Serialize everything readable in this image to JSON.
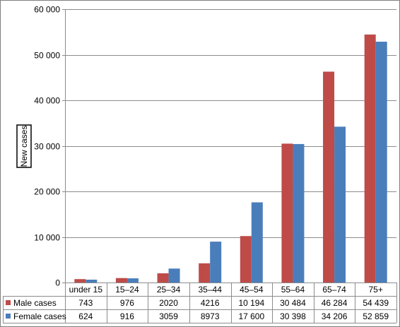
{
  "chart_data": {
    "type": "bar",
    "ylabel": "New cases",
    "ylim": [
      0,
      60000
    ],
    "yticks": [
      "0",
      "10 000",
      "20 000",
      "30 000",
      "40 000",
      "50 000",
      "60 000"
    ],
    "ytick_values": [
      0,
      10000,
      20000,
      30000,
      40000,
      50000,
      60000
    ],
    "grid": true,
    "legend": "data-table",
    "categories": [
      "under 15",
      "15–24",
      "25–34",
      "35–44",
      "45–54",
      "55–64",
      "65–74",
      "75+"
    ],
    "series": [
      {
        "name": "Male cases",
        "color": "#be4b48",
        "values": [
          743,
          976,
          2020,
          4216,
          10194,
          30484,
          46284,
          54439
        ],
        "labels": [
          "743",
          "976",
          "2020",
          "4216",
          "10 194",
          "30 484",
          "46 284",
          "54 439"
        ]
      },
      {
        "name": "Female cases",
        "color": "#4a7ebb",
        "values": [
          624,
          916,
          3059,
          8973,
          17600,
          30398,
          34206,
          52859
        ],
        "labels": [
          "624",
          "916",
          "3059",
          "8973",
          "17 600",
          "30 398",
          "34 206",
          "52 859"
        ]
      }
    ]
  }
}
